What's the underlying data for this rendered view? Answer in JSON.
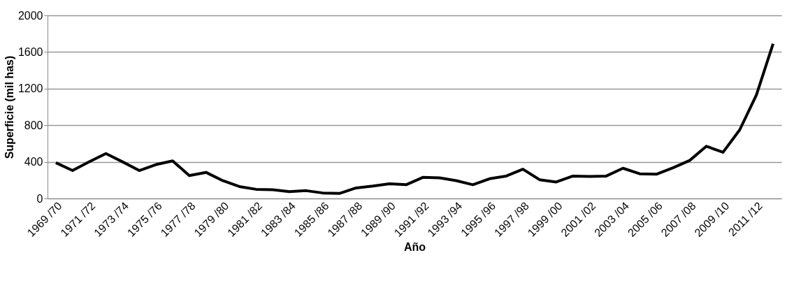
{
  "chart_data": {
    "type": "line",
    "xlabel": "Año",
    "ylabel": "Superficie (mil has)",
    "categories": [
      "1969 /70",
      null,
      "1971 /72",
      null,
      "1973 /74",
      null,
      "1975 /76",
      null,
      "1977 /78",
      null,
      "1979 /80",
      null,
      "1981 /82",
      null,
      "1983 /84",
      null,
      "1985 /86",
      null,
      "1987 /88",
      null,
      "1989 /90",
      null,
      "1991 /92",
      null,
      "1993 /94",
      null,
      "1995 /96",
      null,
      "1997 /98",
      null,
      "1999 /00",
      null,
      "2001 /02",
      null,
      "2003 /04",
      null,
      "2005 /06",
      null,
      "2007 /08",
      null,
      "2009 /10",
      null,
      "2011 /12",
      null
    ],
    "series": [
      {
        "color": "#000000",
        "values": [
          390,
          305,
          400,
          490,
          400,
          305,
          370,
          410,
          250,
          285,
          195,
          130,
          100,
          95,
          75,
          85,
          60,
          55,
          115,
          135,
          160,
          150,
          230,
          225,
          195,
          150,
          215,
          245,
          320,
          205,
          180,
          245,
          240,
          245,
          330,
          270,
          265,
          335,
          415,
          570,
          505,
          750,
          1130,
          1690
        ]
      }
    ],
    "ylim": [
      0,
      2000
    ],
    "yticks": [
      0,
      400,
      800,
      1200,
      1600,
      2000
    ],
    "grid": "y",
    "marker": "none",
    "line_style": "solid"
  }
}
